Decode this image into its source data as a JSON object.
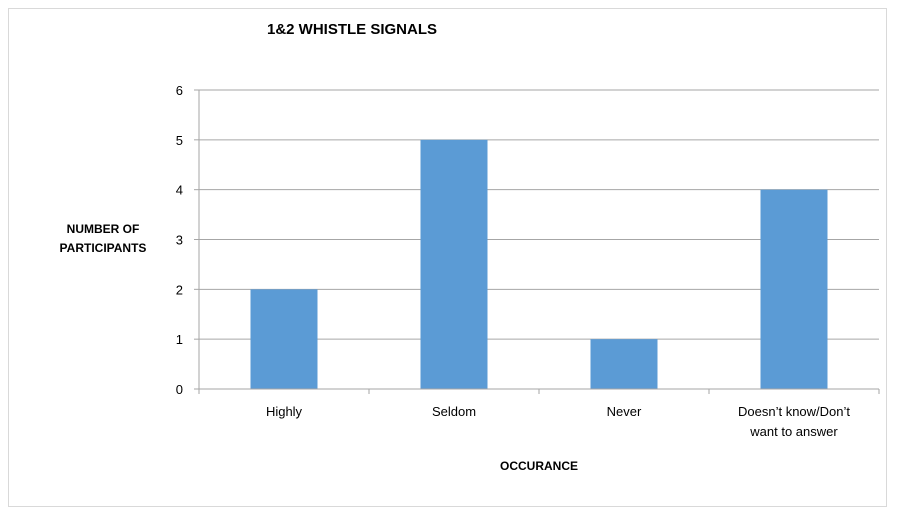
{
  "chart_data": {
    "type": "bar",
    "title": "1&2 WHISTLE SIGNALS",
    "xlabel": "OCCURANCE",
    "ylabel_lines": [
      "NUMBER OF",
      "PARTICIPANTS"
    ],
    "categories": [
      [
        "Highly"
      ],
      [
        "Seldom"
      ],
      [
        "Never"
      ],
      [
        "Doesn’t know/Don’t",
        "want to answer"
      ]
    ],
    "values": [
      2,
      5,
      1,
      4
    ],
    "ylim": [
      0,
      6
    ],
    "yticks": [
      "0",
      "1",
      "2",
      "3",
      "4",
      "5",
      "6"
    ],
    "grid": true,
    "bar_color": "#5b9bd5",
    "grid_color": "#a6a6a6"
  }
}
